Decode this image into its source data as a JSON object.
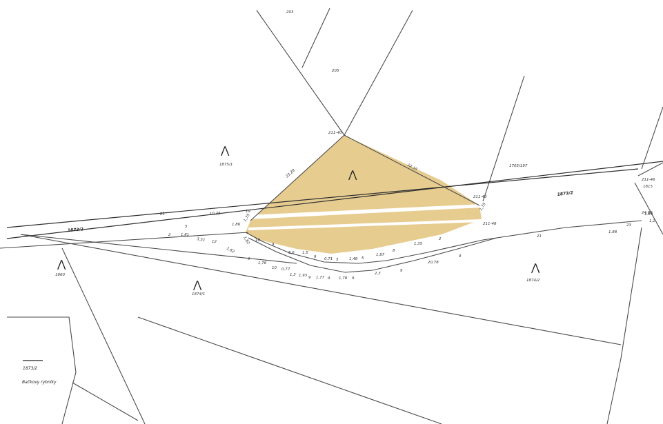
{
  "map": {
    "parcel_fill": "#e6c98a",
    "parcel_labels": [
      {
        "id": "p-203",
        "text": "203"
      },
      {
        "id": "p-205",
        "text": "205"
      },
      {
        "id": "p-1875-1",
        "text": "1875/1"
      },
      {
        "id": "p-1705-197",
        "text": "1705/197"
      },
      {
        "id": "p-1873-2-left",
        "text": "1873/2"
      },
      {
        "id": "p-1873-2-right",
        "text": "1873/2"
      },
      {
        "id": "p-1860",
        "text": "1860"
      },
      {
        "id": "p-1874-1",
        "text": "1874/1"
      },
      {
        "id": "p-1874-2",
        "text": "1874/2"
      },
      {
        "id": "p-1815",
        "text": "1815"
      }
    ],
    "point_labels": [
      {
        "id": "pt-211-40",
        "text": "211-40"
      },
      {
        "id": "pt-211-43",
        "text": "211-43"
      },
      {
        "id": "pt-211-48",
        "text": "211-48"
      },
      {
        "id": "pt-211-46",
        "text": "211-46"
      }
    ],
    "distances": [
      "33,28",
      "32,35",
      "21",
      "10,35",
      "19",
      "1,75",
      "1,75",
      "5",
      "24,86",
      "1,86",
      "2",
      "1,81",
      "3,51",
      "12",
      "1,82",
      "1,82",
      "10",
      "9",
      "6,6",
      "1,5",
      "9",
      "0,71",
      "5",
      "1,48",
      "5",
      "1,87",
      "8",
      "1,35",
      "2",
      "9",
      "1,76",
      "10",
      "0,77",
      "1,3",
      "1,93",
      "9",
      "1,77",
      "9",
      "1,78",
      "9",
      "2,3",
      "9",
      "20,78",
      "9",
      "21",
      "1,88",
      "23",
      "1,60",
      "1,2"
    ],
    "red_marks": [
      "4",
      "4",
      "7",
      "1",
      "2",
      "3"
    ],
    "legend": {
      "code": "1873/2",
      "caption": "Bačkovy rybníky"
    }
  }
}
